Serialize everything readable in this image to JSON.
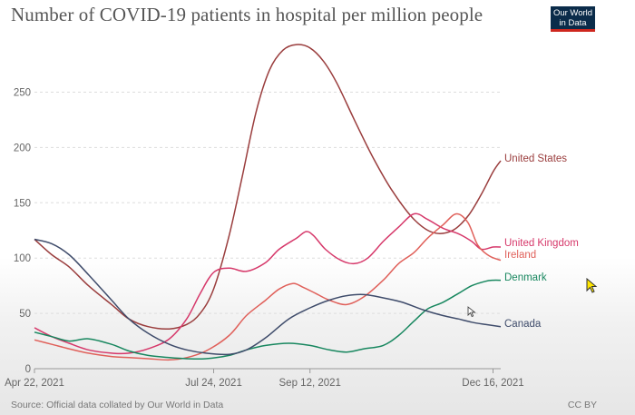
{
  "title": "Number of COVID-19 patients in hospital per million people",
  "logo": {
    "line1": "Our World",
    "line2": "in Data"
  },
  "footer": {
    "source": "Source: Official data collated by Our World in Data",
    "license": "CC BY"
  },
  "colors": {
    "United States": "#9a3d3d",
    "United Kingdom": "#d6386a",
    "Ireland": "#e0605a",
    "Denmark": "#18875f",
    "Canada": "#3f4c6b",
    "grid": "#dddddd",
    "axis_text": "#666666"
  },
  "chart_data": {
    "type": "line",
    "title": "Number of COVID-19 patients in hospital per million people",
    "xlabel": "",
    "ylabel": "",
    "x_range": [
      "2021-04-22",
      "2021-12-20"
    ],
    "ylim": [
      0,
      290
    ],
    "yticks": [
      0,
      50,
      100,
      150,
      200,
      250
    ],
    "xticks": [
      "Apr 22, 2021",
      "Jul 24, 2021",
      "Sep 12, 2021",
      "Dec 16, 2021"
    ],
    "xtick_dates": [
      "2021-04-22",
      "2021-07-24",
      "2021-09-12",
      "2021-12-16"
    ],
    "grid": true,
    "legend": "line-end labels",
    "series": [
      {
        "name": "United States",
        "points": [
          [
            "2021-04-22",
            117
          ],
          [
            "2021-05-01",
            103
          ],
          [
            "2021-05-10",
            92
          ],
          [
            "2021-05-20",
            75
          ],
          [
            "2021-06-01",
            58
          ],
          [
            "2021-06-10",
            45
          ],
          [
            "2021-06-20",
            38
          ],
          [
            "2021-07-01",
            36
          ],
          [
            "2021-07-10",
            40
          ],
          [
            "2021-07-17",
            50
          ],
          [
            "2021-07-24",
            72
          ],
          [
            "2021-08-01",
            120
          ],
          [
            "2021-08-08",
            175
          ],
          [
            "2021-08-15",
            232
          ],
          [
            "2021-08-22",
            270
          ],
          [
            "2021-08-29",
            288
          ],
          [
            "2021-09-05",
            293
          ],
          [
            "2021-09-12",
            290
          ],
          [
            "2021-09-19",
            278
          ],
          [
            "2021-09-26",
            258
          ],
          [
            "2021-10-05",
            225
          ],
          [
            "2021-10-15",
            190
          ],
          [
            "2021-10-25",
            160
          ],
          [
            "2021-11-05",
            135
          ],
          [
            "2021-11-15",
            123
          ],
          [
            "2021-11-25",
            125
          ],
          [
            "2021-12-03",
            138
          ],
          [
            "2021-12-10",
            158
          ],
          [
            "2021-12-16",
            178
          ],
          [
            "2021-12-20",
            188
          ]
        ]
      },
      {
        "name": "United Kingdom",
        "points": [
          [
            "2021-04-22",
            37
          ],
          [
            "2021-05-01",
            29
          ],
          [
            "2021-05-10",
            23
          ],
          [
            "2021-05-20",
            17
          ],
          [
            "2021-06-01",
            14
          ],
          [
            "2021-06-10",
            14
          ],
          [
            "2021-06-20",
            18
          ],
          [
            "2021-07-01",
            27
          ],
          [
            "2021-07-10",
            45
          ],
          [
            "2021-07-17",
            68
          ],
          [
            "2021-07-24",
            87
          ],
          [
            "2021-08-01",
            91
          ],
          [
            "2021-08-10",
            88
          ],
          [
            "2021-08-20",
            96
          ],
          [
            "2021-08-27",
            108
          ],
          [
            "2021-09-05",
            118
          ],
          [
            "2021-09-10",
            124
          ],
          [
            "2021-09-14",
            120
          ],
          [
            "2021-09-20",
            108
          ],
          [
            "2021-09-28",
            98
          ],
          [
            "2021-10-05",
            95
          ],
          [
            "2021-10-12",
            100
          ],
          [
            "2021-10-20",
            115
          ],
          [
            "2021-10-28",
            128
          ],
          [
            "2021-11-05",
            140
          ],
          [
            "2021-11-12",
            135
          ],
          [
            "2021-11-20",
            127
          ],
          [
            "2021-11-28",
            122
          ],
          [
            "2021-12-05",
            115
          ],
          [
            "2021-12-10",
            108
          ],
          [
            "2021-12-16",
            110
          ],
          [
            "2021-12-20",
            110
          ]
        ]
      },
      {
        "name": "Ireland",
        "points": [
          [
            "2021-04-22",
            26
          ],
          [
            "2021-05-01",
            22
          ],
          [
            "2021-05-10",
            18
          ],
          [
            "2021-05-20",
            14
          ],
          [
            "2021-06-01",
            11
          ],
          [
            "2021-06-10",
            10
          ],
          [
            "2021-06-20",
            9
          ],
          [
            "2021-07-01",
            8
          ],
          [
            "2021-07-10",
            10
          ],
          [
            "2021-07-20",
            16
          ],
          [
            "2021-08-01",
            30
          ],
          [
            "2021-08-10",
            48
          ],
          [
            "2021-08-20",
            62
          ],
          [
            "2021-08-27",
            72
          ],
          [
            "2021-09-03",
            77
          ],
          [
            "2021-09-08",
            74
          ],
          [
            "2021-09-15",
            68
          ],
          [
            "2021-09-22",
            62
          ],
          [
            "2021-10-01",
            58
          ],
          [
            "2021-10-10",
            65
          ],
          [
            "2021-10-20",
            80
          ],
          [
            "2021-10-28",
            95
          ],
          [
            "2021-11-05",
            105
          ],
          [
            "2021-11-12",
            118
          ],
          [
            "2021-11-20",
            130
          ],
          [
            "2021-11-27",
            140
          ],
          [
            "2021-12-03",
            132
          ],
          [
            "2021-12-08",
            112
          ],
          [
            "2021-12-14",
            102
          ],
          [
            "2021-12-20",
            98
          ]
        ]
      },
      {
        "name": "Denmark",
        "points": [
          [
            "2021-04-22",
            33
          ],
          [
            "2021-05-01",
            29
          ],
          [
            "2021-05-10",
            25
          ],
          [
            "2021-05-20",
            27
          ],
          [
            "2021-06-01",
            22
          ],
          [
            "2021-06-10",
            16
          ],
          [
            "2021-06-20",
            12
          ],
          [
            "2021-07-01",
            10
          ],
          [
            "2021-07-10",
            9
          ],
          [
            "2021-07-20",
            9
          ],
          [
            "2021-08-01",
            12
          ],
          [
            "2021-08-10",
            17
          ],
          [
            "2021-08-20",
            21
          ],
          [
            "2021-09-01",
            23
          ],
          [
            "2021-09-12",
            21
          ],
          [
            "2021-09-22",
            17
          ],
          [
            "2021-10-01",
            15
          ],
          [
            "2021-10-10",
            18
          ],
          [
            "2021-10-20",
            21
          ],
          [
            "2021-10-28",
            30
          ],
          [
            "2021-11-05",
            43
          ],
          [
            "2021-11-12",
            54
          ],
          [
            "2021-11-20",
            60
          ],
          [
            "2021-11-28",
            68
          ],
          [
            "2021-12-05",
            75
          ],
          [
            "2021-12-12",
            79
          ],
          [
            "2021-12-16",
            80
          ],
          [
            "2021-12-20",
            80
          ]
        ]
      },
      {
        "name": "Canada",
        "points": [
          [
            "2021-04-22",
            117
          ],
          [
            "2021-05-01",
            113
          ],
          [
            "2021-05-10",
            103
          ],
          [
            "2021-05-20",
            85
          ],
          [
            "2021-06-01",
            62
          ],
          [
            "2021-06-10",
            45
          ],
          [
            "2021-06-20",
            32
          ],
          [
            "2021-07-01",
            22
          ],
          [
            "2021-07-10",
            17
          ],
          [
            "2021-07-20",
            14
          ],
          [
            "2021-08-01",
            13
          ],
          [
            "2021-08-10",
            17
          ],
          [
            "2021-08-20",
            28
          ],
          [
            "2021-09-01",
            45
          ],
          [
            "2021-09-12",
            55
          ],
          [
            "2021-09-22",
            62
          ],
          [
            "2021-10-01",
            66
          ],
          [
            "2021-10-10",
            67
          ],
          [
            "2021-10-20",
            64
          ],
          [
            "2021-10-30",
            60
          ],
          [
            "2021-11-10",
            53
          ],
          [
            "2021-11-20",
            48
          ],
          [
            "2021-11-28",
            45
          ],
          [
            "2021-12-05",
            42
          ],
          [
            "2021-12-12",
            40
          ],
          [
            "2021-12-20",
            38
          ]
        ]
      }
    ]
  }
}
